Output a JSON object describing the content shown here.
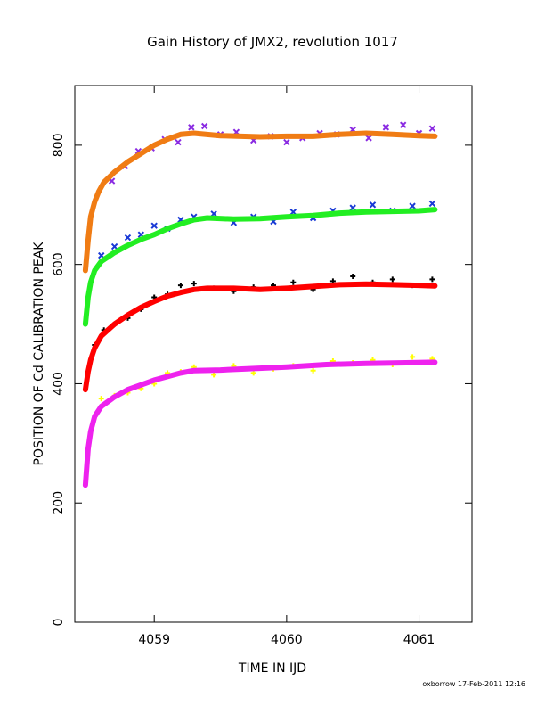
{
  "chart_data": {
    "type": "scatter",
    "title": "Gain History of JMX2, revolution 1017",
    "xlabel": "TIME IN IJD",
    "ylabel": "POSITION OF Cd CALIBRATION PEAK",
    "footer": "oxborrow 17-Feb-2011 12:16",
    "xlim": [
      4058.4,
      4061.4
    ],
    "ylim": [
      0,
      900
    ],
    "xticks": [
      "4059",
      "4060",
      "4061"
    ],
    "yticks": [
      "0",
      "200",
      "400",
      "600",
      "800"
    ],
    "grid": false,
    "series": [
      {
        "color": "#8a2be2",
        "marker": "x",
        "role": "points",
        "x": [
          4058.68,
          4058.78,
          4058.88,
          4058.98,
          4059.08,
          4059.18,
          4059.28,
          4059.38,
          4059.5,
          4059.62,
          4059.75,
          4059.88,
          4060.0,
          4060.12,
          4060.25,
          4060.38,
          4060.5,
          4060.62,
          4060.75,
          4060.88,
          4061.0,
          4061.1
        ],
        "y": [
          740,
          765,
          790,
          795,
          810,
          805,
          830,
          832,
          818,
          822,
          808,
          815,
          805,
          812,
          820,
          818,
          826,
          812,
          830,
          834,
          820,
          828
        ]
      },
      {
        "color": "#f07c14",
        "marker": "line",
        "role": "fit",
        "x": [
          4058.48,
          4058.5,
          4058.52,
          4058.55,
          4058.58,
          4058.62,
          4058.7,
          4058.8,
          4058.9,
          4059.0,
          4059.1,
          4059.2,
          4059.3,
          4059.5,
          4059.8,
          4060.0,
          4060.2,
          4060.4,
          4060.6,
          4060.8,
          4061.0,
          4061.12
        ],
        "y": [
          590,
          640,
          680,
          705,
          722,
          738,
          755,
          772,
          786,
          800,
          810,
          818,
          820,
          816,
          814,
          815,
          815,
          818,
          820,
          818,
          816,
          815
        ]
      },
      {
        "color": "#1a3ad6",
        "marker": "x",
        "role": "points",
        "x": [
          4058.6,
          4058.7,
          4058.8,
          4058.9,
          4059.0,
          4059.1,
          4059.2,
          4059.3,
          4059.45,
          4059.6,
          4059.75,
          4059.9,
          4060.05,
          4060.2,
          4060.35,
          4060.5,
          4060.65,
          4060.8,
          4060.95,
          4061.1
        ],
        "y": [
          615,
          630,
          645,
          650,
          665,
          660,
          675,
          680,
          685,
          670,
          680,
          672,
          688,
          678,
          690,
          695,
          700,
          690,
          698,
          702
        ]
      },
      {
        "color": "#22ee22",
        "marker": "line",
        "role": "fit",
        "x": [
          4058.48,
          4058.5,
          4058.52,
          4058.55,
          4058.6,
          4058.7,
          4058.8,
          4058.9,
          4059.0,
          4059.1,
          4059.2,
          4059.3,
          4059.4,
          4059.6,
          4059.8,
          4060.0,
          4060.2,
          4060.4,
          4060.6,
          4060.8,
          4061.0,
          4061.12
        ],
        "y": [
          500,
          545,
          570,
          590,
          605,
          620,
          632,
          642,
          650,
          660,
          668,
          675,
          678,
          676,
          677,
          680,
          682,
          686,
          688,
          689,
          690,
          692
        ]
      },
      {
        "color": "#000000",
        "marker": "+",
        "role": "points",
        "x": [
          4058.55,
          4058.62,
          4058.7,
          4058.8,
          4058.9,
          4059.0,
          4059.1,
          4059.2,
          4059.3,
          4059.45,
          4059.6,
          4059.75,
          4059.9,
          4060.05,
          4060.2,
          4060.35,
          4060.5,
          4060.65,
          4060.8,
          4060.95,
          4061.1
        ],
        "y": [
          465,
          490,
          500,
          510,
          525,
          545,
          550,
          565,
          568,
          560,
          555,
          562,
          565,
          570,
          558,
          572,
          580,
          570,
          575,
          565,
          575
        ]
      },
      {
        "color": "#ff0000",
        "marker": "line",
        "role": "fit",
        "x": [
          4058.48,
          4058.5,
          4058.52,
          4058.55,
          4058.6,
          4058.7,
          4058.8,
          4058.9,
          4059.0,
          4059.1,
          4059.2,
          4059.3,
          4059.4,
          4059.6,
          4059.8,
          4060.0,
          4060.2,
          4060.4,
          4060.6,
          4060.8,
          4061.0,
          4061.12
        ],
        "y": [
          390,
          420,
          440,
          460,
          480,
          500,
          515,
          528,
          538,
          547,
          553,
          558,
          560,
          560,
          558,
          560,
          563,
          566,
          567,
          566,
          565,
          564
        ]
      },
      {
        "color": "#ffff00",
        "marker": "+",
        "role": "points",
        "x": [
          4058.6,
          4058.7,
          4058.8,
          4058.9,
          4059.0,
          4059.1,
          4059.2,
          4059.3,
          4059.45,
          4059.6,
          4059.75,
          4059.9,
          4060.05,
          4060.2,
          4060.35,
          4060.5,
          4060.65,
          4060.8,
          4060.95,
          4061.1
        ],
        "y": [
          375,
          380,
          385,
          392,
          400,
          418,
          420,
          428,
          415,
          430,
          418,
          425,
          430,
          422,
          438,
          435,
          440,
          432,
          445,
          442
        ]
      },
      {
        "color": "#ee22ee",
        "marker": "line",
        "role": "fit",
        "x": [
          4058.48,
          4058.5,
          4058.52,
          4058.55,
          4058.6,
          4058.7,
          4058.8,
          4058.9,
          4059.0,
          4059.1,
          4059.2,
          4059.3,
          4059.5,
          4059.7,
          4060.0,
          4060.3,
          4060.6,
          4060.9,
          4061.12
        ],
        "y": [
          230,
          290,
          320,
          345,
          362,
          378,
          390,
          398,
          406,
          412,
          418,
          422,
          423,
          425,
          428,
          432,
          434,
          435,
          436
        ]
      }
    ]
  }
}
